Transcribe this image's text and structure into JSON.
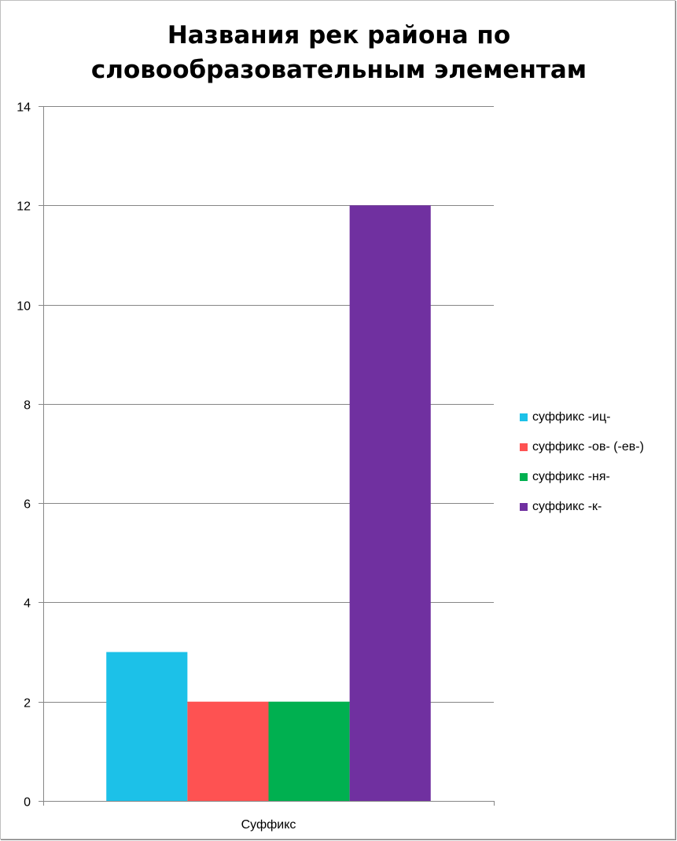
{
  "chart_data": {
    "type": "bar",
    "title": "Названия рек района по словообразовательным элементам",
    "categories": [
      "Суффикс"
    ],
    "series": [
      {
        "name": "суффикс -иц-",
        "values": [
          3
        ],
        "color": "#1cc1e8"
      },
      {
        "name": "суффикс -ов- (-ев-)",
        "values": [
          2
        ],
        "color": "#fe5252"
      },
      {
        "name": "суффикс -ня-",
        "values": [
          2
        ],
        "color": "#00b050"
      },
      {
        "name": "суффикс -к-",
        "values": [
          12
        ],
        "color": "#7030a0"
      }
    ],
    "ylim": [
      0,
      14
    ],
    "yticks": [
      "0",
      "2",
      "4",
      "6",
      "8",
      "10",
      "12",
      "14"
    ],
    "xlabel": "",
    "ylabel": "",
    "grid": true,
    "legend_position": "right"
  }
}
